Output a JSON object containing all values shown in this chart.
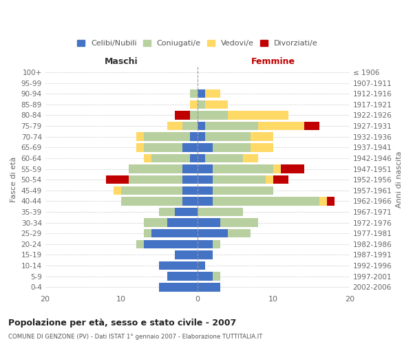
{
  "age_groups": [
    "100+",
    "95-99",
    "90-94",
    "85-89",
    "80-84",
    "75-79",
    "70-74",
    "65-69",
    "60-64",
    "55-59",
    "50-54",
    "45-49",
    "40-44",
    "35-39",
    "30-34",
    "25-29",
    "20-24",
    "15-19",
    "10-14",
    "5-9",
    "0-4"
  ],
  "birth_years": [
    "≤ 1906",
    "1907-1911",
    "1912-1916",
    "1917-1921",
    "1922-1926",
    "1927-1931",
    "1932-1936",
    "1937-1941",
    "1942-1946",
    "1947-1951",
    "1952-1956",
    "1957-1961",
    "1962-1966",
    "1967-1971",
    "1972-1976",
    "1977-1981",
    "1982-1986",
    "1987-1991",
    "1992-1996",
    "1997-2001",
    "2002-2006"
  ],
  "male": {
    "celibi": [
      0,
      0,
      0,
      0,
      0,
      0,
      1,
      2,
      1,
      2,
      2,
      2,
      2,
      3,
      4,
      6,
      7,
      3,
      5,
      4,
      5
    ],
    "coniugati": [
      0,
      0,
      1,
      0,
      1,
      2,
      6,
      5,
      5,
      7,
      7,
      8,
      8,
      2,
      3,
      1,
      1,
      0,
      0,
      0,
      0
    ],
    "vedovi": [
      0,
      0,
      0,
      1,
      0,
      2,
      1,
      1,
      1,
      0,
      0,
      1,
      0,
      0,
      0,
      0,
      0,
      0,
      0,
      0,
      0
    ],
    "divorziati": [
      0,
      0,
      0,
      0,
      2,
      0,
      0,
      0,
      0,
      0,
      3,
      0,
      0,
      0,
      0,
      0,
      0,
      0,
      0,
      0,
      0
    ]
  },
  "female": {
    "nubili": [
      0,
      0,
      1,
      0,
      0,
      1,
      1,
      2,
      1,
      2,
      2,
      2,
      2,
      0,
      3,
      4,
      2,
      2,
      1,
      2,
      3
    ],
    "coniugate": [
      0,
      0,
      0,
      1,
      4,
      7,
      6,
      5,
      5,
      8,
      7,
      8,
      14,
      6,
      5,
      3,
      1,
      0,
      0,
      1,
      0
    ],
    "vedove": [
      0,
      0,
      2,
      3,
      8,
      6,
      3,
      3,
      2,
      1,
      1,
      0,
      1,
      0,
      0,
      0,
      0,
      0,
      0,
      0,
      0
    ],
    "divorziate": [
      0,
      0,
      0,
      0,
      0,
      2,
      0,
      0,
      0,
      3,
      2,
      0,
      1,
      0,
      0,
      0,
      0,
      0,
      0,
      0,
      0
    ]
  },
  "colors": {
    "celibi": "#4472c4",
    "coniugati": "#b8cfa0",
    "vedovi": "#ffd966",
    "divorziati": "#c00000"
  },
  "xlim": [
    -20,
    20
  ],
  "xticks": [
    -20,
    -10,
    0,
    10,
    20
  ],
  "xticklabels": [
    "20",
    "10",
    "0",
    "10",
    "20"
  ],
  "title": "Popolazione per età, sesso e stato civile - 2007",
  "subtitle": "COMUNE DI GENZONE (PV) - Dati ISTAT 1° gennaio 2007 - Elaborazione TUTTITALIA.IT",
  "ylabel": "Fasce di età",
  "ylabel_right": "Anni di nascita",
  "legend_labels": [
    "Celibi/Nubili",
    "Coniugati/e",
    "Vedovi/e",
    "Divorziati/e"
  ],
  "maschi_label": "Maschi",
  "femmine_label": "Femmine",
  "background_color": "#ffffff",
  "bar_height": 0.8
}
